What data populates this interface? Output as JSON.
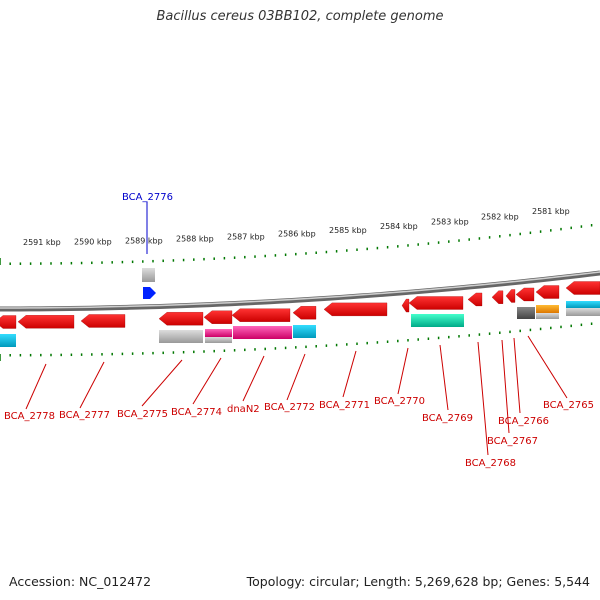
{
  "title": "Bacillus cereus 03BB102, complete genome",
  "footer": {
    "accession": "Accession: NC_012472",
    "topology": "Topology: circular; Length: 5,269,628 bp; Genes: 5,544"
  },
  "colors": {
    "gene_red": "#ff0000",
    "backbone": "#888888",
    "ticks": "#007700",
    "label_red": "#cc0000",
    "label_blue": "#0000cc",
    "cog_blue": "#0022ff",
    "cog_magenta": "#ff1493",
    "cog_cyan": "#00ccee",
    "cog_teal": "#00ddaa",
    "cog_orange": "#ff9900",
    "cog_gray": "#999999",
    "cog_dark_gray": "#555555"
  },
  "scale_labels": [
    "2591 kbp",
    "2590 kbp",
    "2589 kbp",
    "2588 kbp",
    "2587 kbp",
    "2586 kbp",
    "2585 kbp",
    "2584 kbp",
    "2583 kbp",
    "2582 kbp",
    "2581 kbp"
  ],
  "genes_reverse": [
    "BCA_2778",
    "BCA_2777",
    "BCA_2775",
    "BCA_2774",
    "dnaN2",
    "BCA_2772",
    "BCA_2771",
    "BCA_2770",
    "BCA_2769",
    "BCA_2768",
    "BCA_2767",
    "BCA_2766",
    "BCA_2765"
  ],
  "genes_forward": [
    "BCA_2776"
  ]
}
